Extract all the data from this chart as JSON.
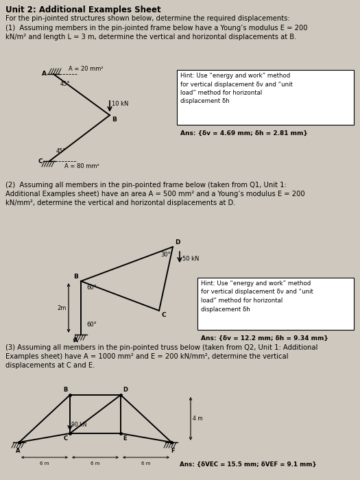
{
  "bg_color": "#cec8be",
  "title": "Unit 2: Additional Examples Sheet",
  "intro": "For the pin-jointed structures shown below, determine the required displacements:",
  "q1_text": "(1)  Assuming members in the pin-jointed frame below have a Young’s modulus E = 200\nkN/m² and length L = 3 m, determine the vertical and horizontal displacements at B.",
  "q2_text": "(2)  Assuming all members in the pin-pointed frame below (taken from Q1, Unit 1:\nAdditional Examples sheet) have an area A = 500 mm² and a Young’s modulus E = 200\nkN/mm², determine the vertical and horizontal displacements at D.",
  "q3_text": "(3) Assuming all members in the pin-pointed truss below (taken from Q2, Unit 1: Additional\nExamples sheet) have A = 1000 mm² and E = 200 kN/mm², determine the vertical\ndisplacements at C and E.",
  "hint1": "Hint: Use “energy and work” method\nfor vertical displacement δv and “unit\nload” method for horizontal\ndisplacement δh",
  "ans1": "Ans: {δv = 4.69 mm; δh = 2.81 mm}",
  "hint2": "Hint: Use “energy and work” method\nfor vertical displacement δv and “unit\nload” method for horizontal\ndisplacement δh",
  "ans2": "Ans: {δv = 12.2 mm; δh = 9.34 mm}",
  "ans3": "Ans: {δVEC = 15.5 mm; δVEF = 9.1 mm}"
}
